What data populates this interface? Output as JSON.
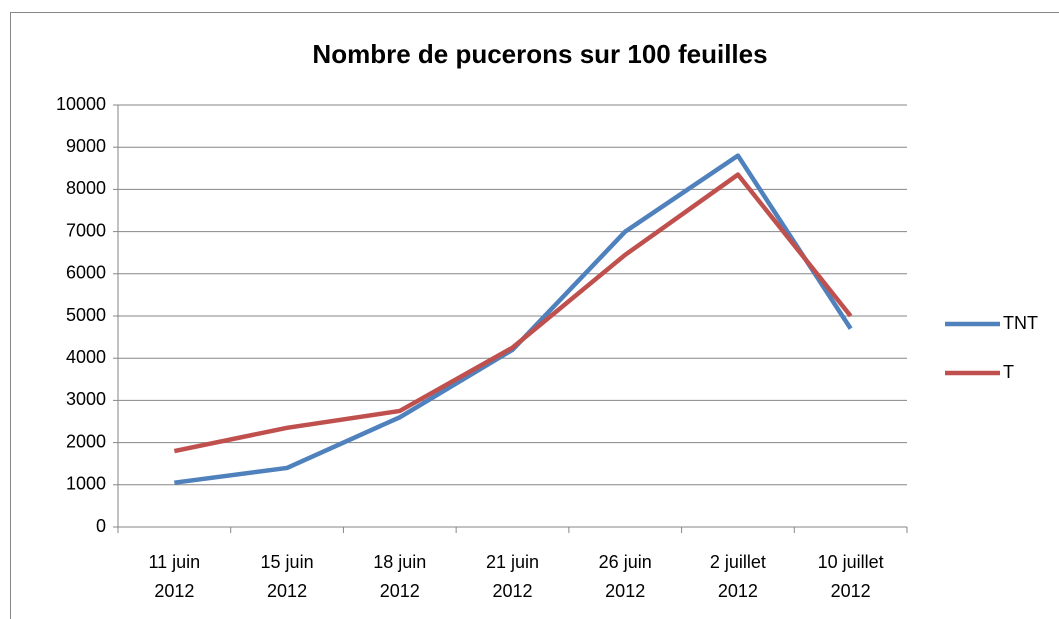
{
  "chart_data": {
    "type": "line",
    "title": "Nombre de pucerons sur 100 feuilles",
    "categories": [
      "11 juin 2012",
      "15 juin 2012",
      "18 juin 2012",
      "21 juin 2012",
      "26 juin 2012",
      "2 juillet 2012",
      "10 juillet 2012"
    ],
    "series": [
      {
        "name": "TNT",
        "color": "#4f81bd",
        "values": [
          1050,
          1400,
          2600,
          4200,
          7000,
          8800,
          4700
        ]
      },
      {
        "name": "T",
        "color": "#c0504d",
        "values": [
          1800,
          2350,
          2750,
          4250,
          6450,
          8350,
          5000
        ]
      }
    ],
    "ylim": [
      0,
      10000
    ],
    "yticks": [
      0,
      1000,
      2000,
      3000,
      4000,
      5000,
      6000,
      7000,
      8000,
      9000,
      10000
    ],
    "grid": true,
    "legend": "right"
  }
}
